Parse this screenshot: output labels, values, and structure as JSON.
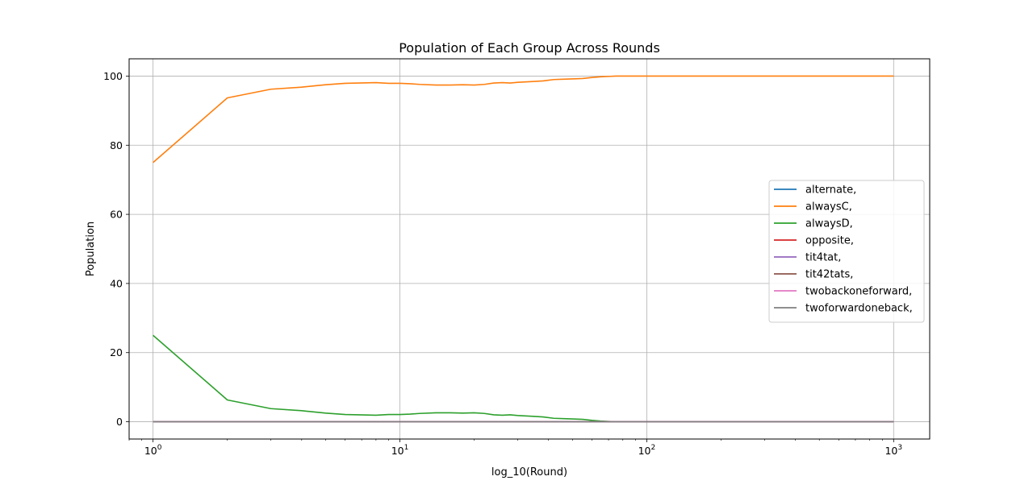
{
  "chart_data": {
    "type": "line",
    "title": "Population of Each Group Across Rounds",
    "xlabel": "log_10(Round)",
    "ylabel": "Population",
    "x_scale": "log",
    "xlim": [
      0.8,
      1400
    ],
    "ylim": [
      -5,
      105
    ],
    "grid": true,
    "legend_position": "center-right",
    "x_ticks": [
      {
        "value": 1,
        "base": "10",
        "exp": "0"
      },
      {
        "value": 10,
        "base": "10",
        "exp": "1"
      },
      {
        "value": 100,
        "base": "10",
        "exp": "2"
      },
      {
        "value": 1000,
        "base": "10",
        "exp": "3"
      }
    ],
    "y_ticks": [
      0,
      20,
      40,
      60,
      80,
      100
    ],
    "series": [
      {
        "name": "alternate,",
        "color": "#1f77b4",
        "x": [
          1,
          1000
        ],
        "y": [
          0,
          0
        ]
      },
      {
        "name": "alwaysC,",
        "color": "#ff7f0e",
        "x": [
          1,
          2,
          3,
          4,
          5,
          6,
          8,
          9,
          10,
          11,
          12,
          14,
          16,
          18,
          20,
          22,
          24,
          26,
          28,
          30,
          34,
          38,
          42,
          46,
          50,
          55,
          60,
          65,
          70,
          75,
          100,
          200,
          500,
          1000
        ],
        "y": [
          75,
          93.7,
          96.2,
          96.8,
          97.5,
          97.9,
          98.1,
          97.9,
          97.9,
          97.8,
          97.6,
          97.4,
          97.4,
          97.5,
          97.4,
          97.6,
          98.0,
          98.1,
          98.0,
          98.2,
          98.4,
          98.6,
          99.0,
          99.1,
          99.2,
          99.3,
          99.6,
          99.8,
          99.9,
          100,
          100,
          100,
          100,
          100
        ]
      },
      {
        "name": "alwaysD,",
        "color": "#2ca02c",
        "x": [
          1,
          2,
          3,
          4,
          5,
          6,
          8,
          9,
          10,
          11,
          12,
          14,
          16,
          18,
          20,
          22,
          24,
          26,
          28,
          30,
          34,
          38,
          42,
          46,
          50,
          55,
          60,
          65,
          70,
          75,
          100,
          200,
          500,
          1000
        ],
        "y": [
          25,
          6.3,
          3.8,
          3.2,
          2.5,
          2.1,
          1.9,
          2.1,
          2.1,
          2.2,
          2.4,
          2.6,
          2.6,
          2.5,
          2.6,
          2.4,
          2.0,
          1.9,
          2.0,
          1.8,
          1.6,
          1.4,
          1.0,
          0.9,
          0.8,
          0.7,
          0.4,
          0.2,
          0.1,
          0,
          0,
          0,
          0,
          0
        ]
      },
      {
        "name": "opposite,",
        "color": "#d62728",
        "x": [
          1,
          1000
        ],
        "y": [
          0,
          0
        ]
      },
      {
        "name": "tit4tat,",
        "color": "#9467bd",
        "x": [
          1,
          1000
        ],
        "y": [
          0,
          0
        ]
      },
      {
        "name": "tit42tats,",
        "color": "#8c564b",
        "x": [
          1,
          1000
        ],
        "y": [
          0,
          0
        ]
      },
      {
        "name": "twobackoneforward,",
        "color": "#e377c2",
        "x": [
          1,
          1000
        ],
        "y": [
          0,
          0
        ]
      },
      {
        "name": "twoforwardoneback,",
        "color": "#7f7f7f",
        "x": [
          1,
          1000
        ],
        "y": [
          0,
          0
        ]
      }
    ]
  }
}
